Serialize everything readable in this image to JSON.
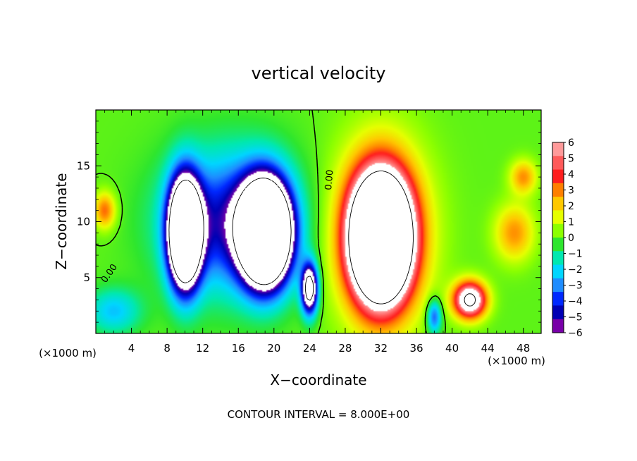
{
  "chart_data": {
    "type": "heatmap",
    "title": "vertical velocity",
    "xlabel": "X−coordinate",
    "ylabel": "Z−coordinate",
    "x_unit": "(×1000 m)",
    "y_unit": "(×1000 m)",
    "footer": "CONTOUR INTERVAL = 8.000E+00",
    "contour_label": "0.00",
    "xlim": [
      0,
      50
    ],
    "ylim": [
      0,
      20
    ],
    "x_ticks": [
      4,
      8,
      12,
      16,
      20,
      24,
      28,
      32,
      36,
      40,
      44,
      48
    ],
    "y_ticks": [
      5,
      10,
      15
    ],
    "colorbar": {
      "ticks": [
        "6",
        "5",
        "4",
        "3",
        "2",
        "1",
        "0",
        "−1",
        "−2",
        "−3",
        "−4",
        "−5",
        "−6"
      ],
      "colors": [
        "#ff9a9a",
        "#ff5a5a",
        "#ff1e1e",
        "#ff7f00",
        "#ffc800",
        "#e6ff00",
        "#8cff00",
        "#2ee62e",
        "#00e8b0",
        "#00d6ff",
        "#1e8cff",
        "#0028ff",
        "#0000b4",
        "#7800a8"
      ],
      "range": [
        -6,
        6
      ]
    },
    "features": [
      {
        "x": 10,
        "z": 9,
        "sx": 1.7,
        "sz": 4.5,
        "w": -18
      },
      {
        "x": 19,
        "z": 9,
        "sx": 2.6,
        "sz": 4.2,
        "w": -22
      },
      {
        "x": 15,
        "z": 10,
        "sx": 7,
        "sz": 6,
        "w": -5
      },
      {
        "x": 24,
        "z": 4,
        "sx": 0.9,
        "sz": 2.2,
        "w": -10
      },
      {
        "x": 32,
        "z": 8.5,
        "sx": 3,
        "sz": 5,
        "w": 22
      },
      {
        "x": 32,
        "z": 9,
        "sx": 5,
        "sz": 7.5,
        "w": 5
      },
      {
        "x": 42,
        "z": 3,
        "sx": 1.8,
        "sz": 1.6,
        "w": 9
      },
      {
        "x": 47,
        "z": 9,
        "sx": 2.2,
        "sz": 2.5,
        "w": 3
      },
      {
        "x": 48,
        "z": 14,
        "sx": 1.5,
        "sz": 1.5,
        "w": 3
      },
      {
        "x": 1,
        "z": 11,
        "sx": 1.2,
        "sz": 1.6,
        "w": 3.5
      },
      {
        "x": 38,
        "z": 1.5,
        "sx": 0.8,
        "sz": 1.5,
        "w": -4
      },
      {
        "x": 2,
        "z": 2,
        "sx": 3,
        "sz": 2,
        "w": -2.5
      }
    ]
  }
}
